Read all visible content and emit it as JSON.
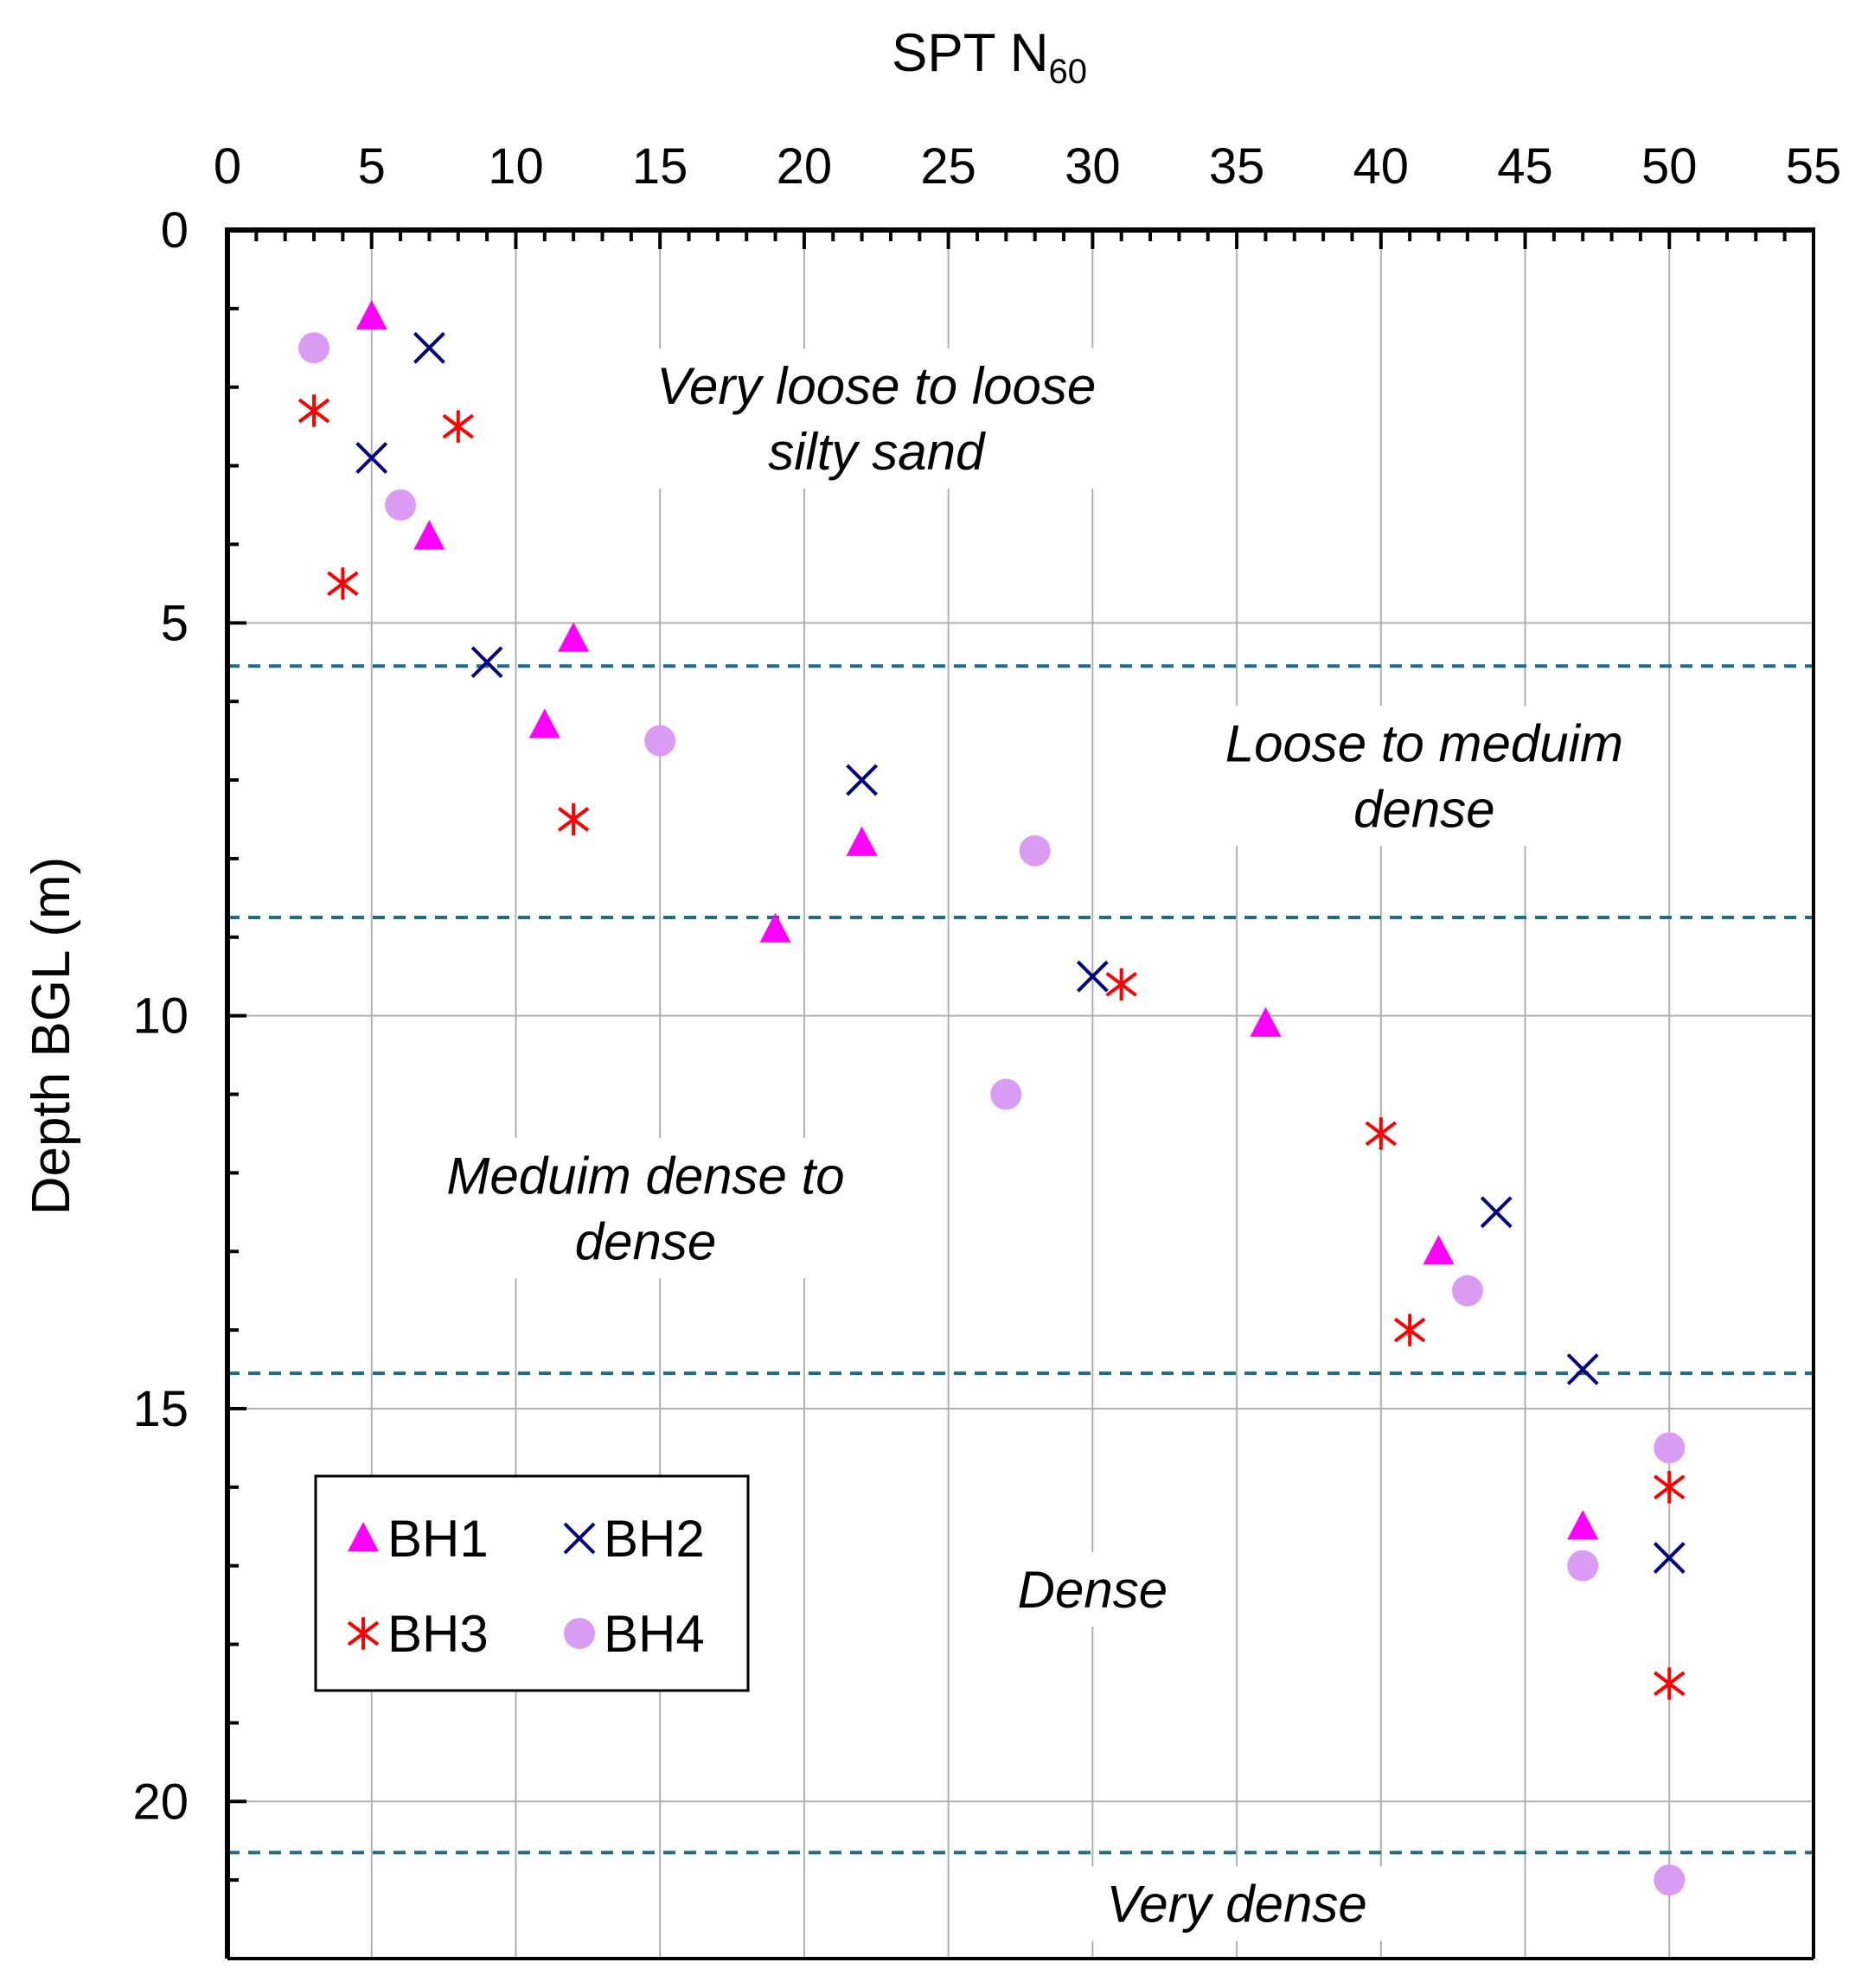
{
  "chart_data": {
    "type": "scatter",
    "title": "SPT N60",
    "title_main": "SPT N",
    "title_sub": "60",
    "xlabel": "SPT N60",
    "ylabel": "Depth BGL (m)",
    "xlim": [
      0,
      55
    ],
    "ylim": [
      22,
      0
    ],
    "x_ticks": [
      0,
      5,
      10,
      15,
      20,
      25,
      30,
      35,
      40,
      45,
      50,
      55
    ],
    "y_ticks": [
      0,
      5,
      10,
      15,
      20
    ],
    "x_axis_position": "top",
    "grid": true,
    "legend_position": "bottom-left",
    "series": [
      {
        "name": "BH1",
        "marker": "triangle",
        "color": "#ff00ff",
        "points": [
          [
            5,
            1.1
          ],
          [
            7,
            3.9
          ],
          [
            12,
            5.2
          ],
          [
            11,
            6.3
          ],
          [
            22,
            7.8
          ],
          [
            19,
            8.9
          ],
          [
            36,
            10.1
          ],
          [
            42,
            13.0
          ],
          [
            47,
            16.5
          ]
        ]
      },
      {
        "name": "BH2",
        "marker": "x",
        "color": "#000080",
        "points": [
          [
            7,
            1.5
          ],
          [
            5,
            2.9
          ],
          [
            9,
            5.5
          ],
          [
            22,
            7.0
          ],
          [
            30,
            9.5
          ],
          [
            44,
            12.5
          ],
          [
            47,
            14.5
          ],
          [
            50,
            16.9
          ]
        ]
      },
      {
        "name": "BH3",
        "marker": "asterisk",
        "color": "#ff0000",
        "points": [
          [
            3,
            2.3
          ],
          [
            8,
            2.5
          ],
          [
            4,
            4.5
          ],
          [
            12,
            7.5
          ],
          [
            31,
            9.6
          ],
          [
            40,
            11.5
          ],
          [
            41,
            14.0
          ],
          [
            50,
            16.0
          ],
          [
            50,
            18.5
          ]
        ]
      },
      {
        "name": "BH4",
        "marker": "circle",
        "color": "#d99cf2",
        "points": [
          [
            3,
            1.5
          ],
          [
            6,
            3.5
          ],
          [
            15,
            6.5
          ],
          [
            28,
            7.9
          ],
          [
            27,
            11.0
          ],
          [
            43,
            13.5
          ],
          [
            50,
            15.5
          ],
          [
            47,
            17.0
          ],
          [
            50,
            21.0
          ]
        ]
      }
    ],
    "boundaries": [
      5.55,
      8.75,
      14.55,
      20.65
    ],
    "boundary_color": "#1f6b8c",
    "zones": [
      {
        "lines": [
          "Very loose to loose",
          "silty sand"
        ],
        "x": 22.5,
        "y": 2.4
      },
      {
        "lines": [
          "Loose to meduim",
          "dense"
        ],
        "x": 41.5,
        "y": 6.95
      },
      {
        "lines": [
          "Meduim dense to",
          "dense"
        ],
        "x": 14.5,
        "y": 12.45
      },
      {
        "lines": [
          "Dense"
        ],
        "x": 30,
        "y": 17.3
      },
      {
        "lines": [
          "Very dense"
        ],
        "x": 35,
        "y": 21.3
      }
    ],
    "legend": [
      {
        "name": "BH1",
        "marker": "triangle",
        "color": "#ff00ff"
      },
      {
        "name": "BH2",
        "marker": "x",
        "color": "#000080"
      },
      {
        "name": "BH3",
        "marker": "asterisk",
        "color": "#ff0000"
      },
      {
        "name": "BH4",
        "marker": "circle",
        "color": "#d99cf2"
      }
    ]
  }
}
